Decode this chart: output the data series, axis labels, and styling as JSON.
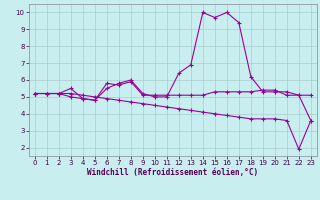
{
  "xlabel": "Windchill (Refroidissement éolien,°C)",
  "background_color": "#c8eef0",
  "line_color": "#990099",
  "grid_color": "#aacccc",
  "xlim": [
    -0.5,
    23.5
  ],
  "ylim": [
    1.5,
    10.5
  ],
  "yticks": [
    2,
    3,
    4,
    5,
    6,
    7,
    8,
    9,
    10
  ],
  "xticks": [
    0,
    1,
    2,
    3,
    4,
    5,
    6,
    7,
    8,
    9,
    10,
    11,
    12,
    13,
    14,
    15,
    16,
    17,
    18,
    19,
    20,
    21,
    22,
    23
  ],
  "line1_x": [
    0,
    1,
    2,
    3,
    4,
    5,
    6,
    7,
    8,
    9,
    10,
    11,
    12,
    13,
    14,
    15,
    16,
    17,
    18,
    19,
    20,
    21,
    22,
    23
  ],
  "line1_y": [
    5.2,
    5.2,
    5.2,
    5.5,
    4.9,
    4.8,
    5.5,
    5.8,
    6.0,
    5.2,
    5.0,
    5.0,
    6.4,
    6.9,
    10.0,
    9.7,
    10.0,
    9.4,
    6.2,
    5.3,
    5.3,
    5.3,
    5.1,
    3.6
  ],
  "line2_x": [
    0,
    1,
    2,
    3,
    4,
    5,
    6,
    7,
    8,
    9,
    10,
    11,
    12,
    13,
    14,
    15,
    16,
    17,
    18,
    19,
    20,
    21,
    22,
    23
  ],
  "line2_y": [
    5.2,
    5.2,
    5.2,
    5.0,
    4.9,
    4.8,
    5.8,
    5.7,
    5.9,
    5.1,
    5.1,
    5.1,
    5.1,
    5.1,
    5.1,
    5.3,
    5.3,
    5.3,
    5.3,
    5.4,
    5.4,
    5.1,
    5.1,
    5.1
  ],
  "line3_x": [
    0,
    1,
    2,
    3,
    4,
    5,
    6,
    7,
    8,
    9,
    10,
    11,
    12,
    13,
    14,
    15,
    16,
    17,
    18,
    19,
    20,
    21,
    22,
    23
  ],
  "line3_y": [
    5.2,
    5.2,
    5.2,
    5.2,
    5.1,
    5.0,
    4.9,
    4.8,
    4.7,
    4.6,
    4.5,
    4.4,
    4.3,
    4.2,
    4.1,
    4.0,
    3.9,
    3.8,
    3.7,
    3.7,
    3.7,
    3.6,
    1.9,
    3.6
  ],
  "tick_fontsize": 5,
  "xlabel_fontsize": 5.5,
  "marker_size": 3,
  "linewidth": 0.8
}
